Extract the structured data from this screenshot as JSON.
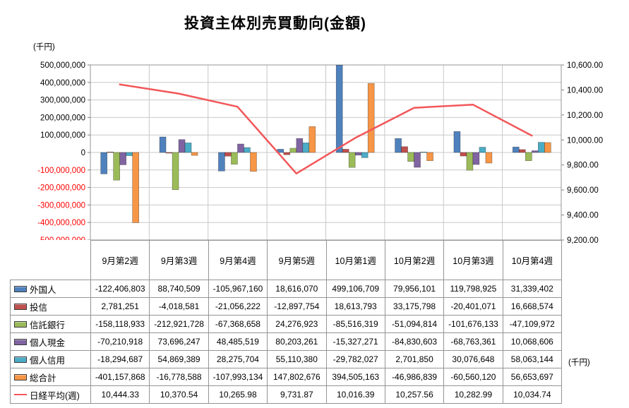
{
  "title": "投資主体別売買動向(金額)",
  "chart_data": {
    "type": "bar",
    "combo": "bar+line",
    "title": "投資主体別売買動向(金額)",
    "categories": [
      "9月第2週",
      "9月第3週",
      "9月第4週",
      "9月第5週",
      "10月第1週",
      "10月第2週",
      "10月第3週",
      "10月第4週"
    ],
    "series": [
      {
        "name": "外国人",
        "type": "bar",
        "color": "#4F81BD",
        "values": [
          -122406803,
          88740509,
          -105967160,
          18616070,
          499106709,
          79956101,
          119798925,
          31339402
        ]
      },
      {
        "name": "投信",
        "type": "bar",
        "color": "#C0504D",
        "values": [
          2781251,
          -4018581,
          -21056222,
          -12897754,
          18613793,
          33175798,
          -20401071,
          16668574
        ]
      },
      {
        "name": "信託銀行",
        "type": "bar",
        "color": "#9BBB59",
        "values": [
          -158118933,
          -212921728,
          -67368658,
          24276923,
          -85516319,
          -51094814,
          -101676133,
          -47109972
        ]
      },
      {
        "name": "個人現金",
        "type": "bar",
        "color": "#8064A2",
        "values": [
          -70210918,
          73696247,
          48485519,
          80203261,
          -15327271,
          -84830603,
          -68763361,
          10068606
        ]
      },
      {
        "name": "個人信用",
        "type": "bar",
        "color": "#4BACC6",
        "values": [
          -18294687,
          54869389,
          28275704,
          55110380,
          -29782027,
          2701850,
          30076648,
          58063144
        ]
      },
      {
        "name": "総合計",
        "type": "bar",
        "color": "#F79646",
        "values": [
          -401157868,
          -16778588,
          -107993134,
          147802676,
          394505163,
          -46986839,
          -60560120,
          56653697
        ]
      },
      {
        "name": "日経平均(週)",
        "type": "line",
        "axis": "right",
        "color": "#F2575A",
        "values": [
          10444.33,
          10370.54,
          10265.98,
          9731.87,
          10016.39,
          10257.56,
          10282.99,
          10034.74
        ]
      }
    ],
    "left_axis": {
      "unit": "(千円)",
      "min": -500000000,
      "max": 500000000,
      "step": 100000000,
      "negative_color": "#FF0000"
    },
    "right_axis": {
      "unit": "(千円)",
      "min": 9200,
      "max": 10600,
      "step": 200
    },
    "grid": true,
    "legend_position": "table-left"
  }
}
